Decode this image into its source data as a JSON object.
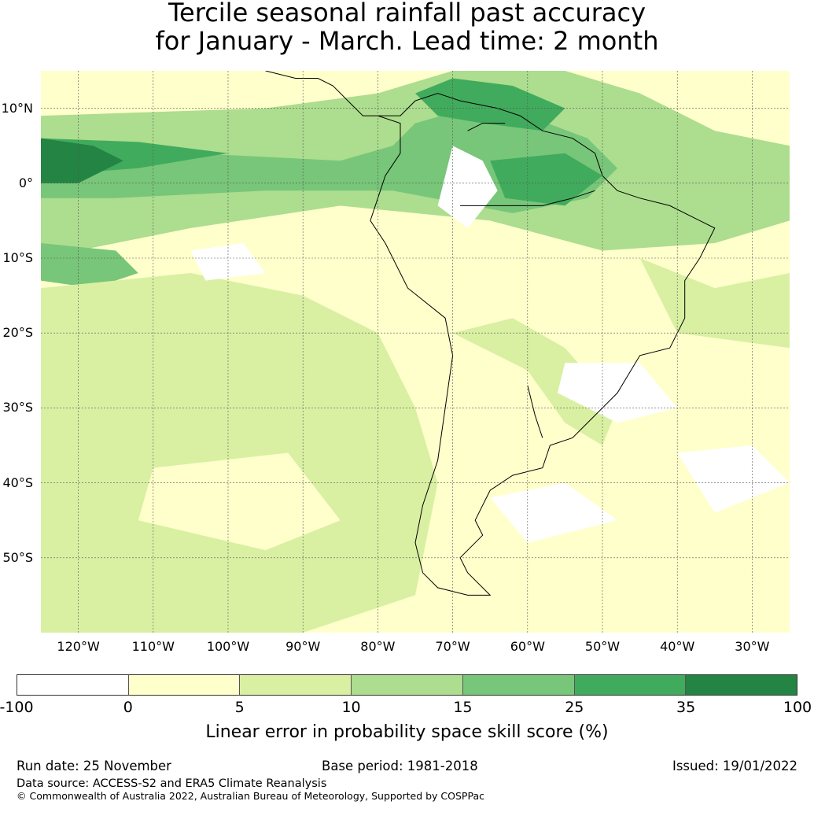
{
  "title": {
    "line1": "Tercile seasonal rainfall past accuracy",
    "line2": "for January - March. Lead time: 2 month"
  },
  "map": {
    "extent": {
      "lon_min": -125,
      "lon_max": -25,
      "lat_min": -60,
      "lat_max": 15
    },
    "lat_ticks": [
      {
        "value": 10,
        "label": "10°N"
      },
      {
        "value": 0,
        "label": "0°"
      },
      {
        "value": -10,
        "label": "10°S"
      },
      {
        "value": -20,
        "label": "20°S"
      },
      {
        "value": -30,
        "label": "30°S"
      },
      {
        "value": -40,
        "label": "40°S"
      },
      {
        "value": -50,
        "label": "50°S"
      }
    ],
    "lon_ticks": [
      {
        "value": -120,
        "label": "120°W"
      },
      {
        "value": -110,
        "label": "110°W"
      },
      {
        "value": -100,
        "label": "100°W"
      },
      {
        "value": -90,
        "label": "90°W"
      },
      {
        "value": -80,
        "label": "80°W"
      },
      {
        "value": -70,
        "label": "70°W"
      },
      {
        "value": -60,
        "label": "60°W"
      },
      {
        "value": -50,
        "label": "50°W"
      },
      {
        "value": -40,
        "label": "40°W"
      },
      {
        "value": -30,
        "label": "30°W"
      }
    ],
    "skill_regions": [
      {
        "level": 3,
        "points": [
          [
            -125,
            9
          ],
          [
            -95,
            10
          ],
          [
            -80,
            12
          ],
          [
            -70,
            15
          ],
          [
            -55,
            15
          ],
          [
            -45,
            12
          ],
          [
            -35,
            7
          ],
          [
            -25,
            5
          ],
          [
            -25,
            -5
          ],
          [
            -35,
            -8
          ],
          [
            -50,
            -9
          ],
          [
            -65,
            -5
          ],
          [
            -85,
            -3
          ],
          [
            -105,
            -6
          ],
          [
            -125,
            -10
          ]
        ]
      },
      {
        "level": 4,
        "points": [
          [
            -125,
            5
          ],
          [
            -105,
            4
          ],
          [
            -85,
            3
          ],
          [
            -78,
            5
          ],
          [
            -75,
            8
          ],
          [
            -68,
            10
          ],
          [
            -60,
            9
          ],
          [
            -52,
            6
          ],
          [
            -48,
            2
          ],
          [
            -52,
            -2
          ],
          [
            -62,
            -4
          ],
          [
            -78,
            -1
          ],
          [
            -95,
            -1
          ],
          [
            -115,
            -2
          ],
          [
            -125,
            -2
          ]
        ]
      },
      {
        "level": 5,
        "points": [
          [
            -125,
            6
          ],
          [
            -112,
            5.5
          ],
          [
            -100,
            4
          ],
          [
            -112,
            2
          ],
          [
            -125,
            1
          ]
        ]
      },
      {
        "level": 6,
        "points": [
          [
            -125,
            6
          ],
          [
            -118,
            5
          ],
          [
            -114,
            3
          ],
          [
            -120,
            0
          ],
          [
            -125,
            0
          ]
        ]
      },
      {
        "level": 5,
        "points": [
          [
            -75,
            12
          ],
          [
            -70,
            14
          ],
          [
            -62,
            13
          ],
          [
            -55,
            10
          ],
          [
            -58,
            7
          ],
          [
            -66,
            8
          ],
          [
            -72,
            9
          ]
        ]
      },
      {
        "level": 5,
        "points": [
          [
            -65,
            3
          ],
          [
            -55,
            4
          ],
          [
            -50,
            1
          ],
          [
            -55,
            -3
          ],
          [
            -63,
            -2
          ]
        ]
      },
      {
        "level": 4,
        "points": [
          [
            -125,
            -8
          ],
          [
            -115,
            -9
          ],
          [
            -112,
            -12
          ],
          [
            -118,
            -14
          ],
          [
            -125,
            -13
          ]
        ]
      },
      {
        "level": 2,
        "points": [
          [
            -125,
            -14
          ],
          [
            -105,
            -12
          ],
          [
            -90,
            -15
          ],
          [
            -80,
            -20
          ],
          [
            -75,
            -30
          ],
          [
            -72,
            -40
          ],
          [
            -75,
            -55
          ],
          [
            -90,
            -60
          ],
          [
            -125,
            -60
          ]
        ]
      },
      {
        "level": 2,
        "points": [
          [
            -70,
            -20
          ],
          [
            -60,
            -25
          ],
          [
            -55,
            -32
          ],
          [
            -50,
            -35
          ],
          [
            -48,
            -30
          ],
          [
            -55,
            -22
          ],
          [
            -62,
            -18
          ]
        ]
      },
      {
        "level": 2,
        "points": [
          [
            -45,
            -10
          ],
          [
            -35,
            -14
          ],
          [
            -25,
            -12
          ],
          [
            -25,
            -22
          ],
          [
            -40,
            -20
          ]
        ]
      },
      {
        "level": 1,
        "points": [
          [
            -110,
            -38
          ],
          [
            -92,
            -36
          ],
          [
            -85,
            -45
          ],
          [
            -95,
            -49
          ],
          [
            -112,
            -45
          ]
        ]
      },
      {
        "level": 0,
        "points": [
          [
            -70,
            5
          ],
          [
            -66,
            3
          ],
          [
            -64,
            -1
          ],
          [
            -68,
            -6
          ],
          [
            -72,
            -3
          ]
        ]
      },
      {
        "level": 0,
        "points": [
          [
            -55,
            -24
          ],
          [
            -45,
            -24
          ],
          [
            -40,
            -30
          ],
          [
            -48,
            -32
          ],
          [
            -56,
            -28
          ]
        ]
      },
      {
        "level": 0,
        "points": [
          [
            -40,
            -36
          ],
          [
            -30,
            -35
          ],
          [
            -25,
            -40
          ],
          [
            -35,
            -44
          ]
        ]
      },
      {
        "level": 0,
        "points": [
          [
            -105,
            -9
          ],
          [
            -98,
            -8
          ],
          [
            -95,
            -12
          ],
          [
            -103,
            -13
          ]
        ]
      },
      {
        "level": 0,
        "points": [
          [
            -65,
            -42
          ],
          [
            -55,
            -40
          ],
          [
            -48,
            -45
          ],
          [
            -60,
            -48
          ]
        ]
      }
    ],
    "coastline": [
      [
        -80,
        9
      ],
      [
        -77,
        8
      ],
      [
        -77,
        4
      ],
      [
        -79,
        1
      ],
      [
        -80,
        -2
      ],
      [
        -81,
        -5
      ],
      [
        -79,
        -8
      ],
      [
        -76,
        -14
      ],
      [
        -71,
        -18
      ],
      [
        -70,
        -23
      ],
      [
        -71,
        -30
      ],
      [
        -72,
        -37
      ],
      [
        -74,
        -43
      ],
      [
        -75,
        -48
      ],
      [
        -74,
        -52
      ],
      [
        -72,
        -54
      ],
      [
        -68,
        -55
      ],
      [
        -65,
        -55
      ],
      [
        -68,
        -52
      ],
      [
        -69,
        -50
      ],
      [
        -66,
        -47
      ],
      [
        -67,
        -45
      ],
      [
        -65,
        -41
      ],
      [
        -62,
        -39
      ],
      [
        -58,
        -38
      ],
      [
        -57,
        -35
      ],
      [
        -54,
        -34
      ],
      [
        -51,
        -31
      ],
      [
        -48,
        -28
      ],
      [
        -45,
        -23
      ],
      [
        -41,
        -22
      ],
      [
        -39,
        -18
      ],
      [
        -39,
        -13
      ],
      [
        -37,
        -10
      ],
      [
        -35,
        -6
      ],
      [
        -37,
        -5
      ],
      [
        -41,
        -3
      ],
      [
        -45,
        -2
      ],
      [
        -48,
        -1
      ],
      [
        -50,
        1
      ],
      [
        -51,
        4
      ],
      [
        -54,
        6
      ],
      [
        -58,
        7
      ],
      [
        -61,
        9
      ],
      [
        -64,
        10
      ],
      [
        -69,
        11
      ],
      [
        -72,
        12
      ],
      [
        -75,
        11
      ],
      [
        -77,
        9
      ],
      [
        -79,
        9
      ],
      [
        -82,
        9
      ],
      [
        -84,
        11
      ],
      [
        -86,
        13
      ],
      [
        -88,
        14
      ],
      [
        -91,
        14
      ],
      [
        -95,
        15
      ]
    ],
    "rivers": [
      [
        [
          -69,
          -3
        ],
        [
          -65,
          -3
        ],
        [
          -61,
          -3
        ],
        [
          -58,
          -3
        ],
        [
          -54,
          -2
        ],
        [
          -51,
          -1
        ]
      ],
      [
        [
          -63,
          8
        ],
        [
          -66,
          8
        ],
        [
          -68,
          7
        ]
      ],
      [
        [
          -58,
          -34
        ],
        [
          -59,
          -31
        ],
        [
          -60,
          -27
        ]
      ]
    ]
  },
  "colorbar": {
    "colors": [
      "#ffffff",
      "#ffffcc",
      "#d9f0a3",
      "#addd8e",
      "#78c679",
      "#41ab5d",
      "#238443"
    ],
    "ticks": [
      "-100",
      "0",
      "5",
      "10",
      "15",
      "25",
      "35",
      "100"
    ],
    "label": "Linear error in probability space skill score (%)"
  },
  "footer": {
    "run_date": "Run date: 25 November",
    "base_period": "Base period: 1981-2018",
    "issued": "Issued: 19/01/2022",
    "data_source": "Data source: ACCESS-S2 and ERA5 Climate Reanalysis",
    "copyright": "© Commonwealth of Australia 2022, Australian Bureau of Meteorology, Supported by COSPPac"
  }
}
